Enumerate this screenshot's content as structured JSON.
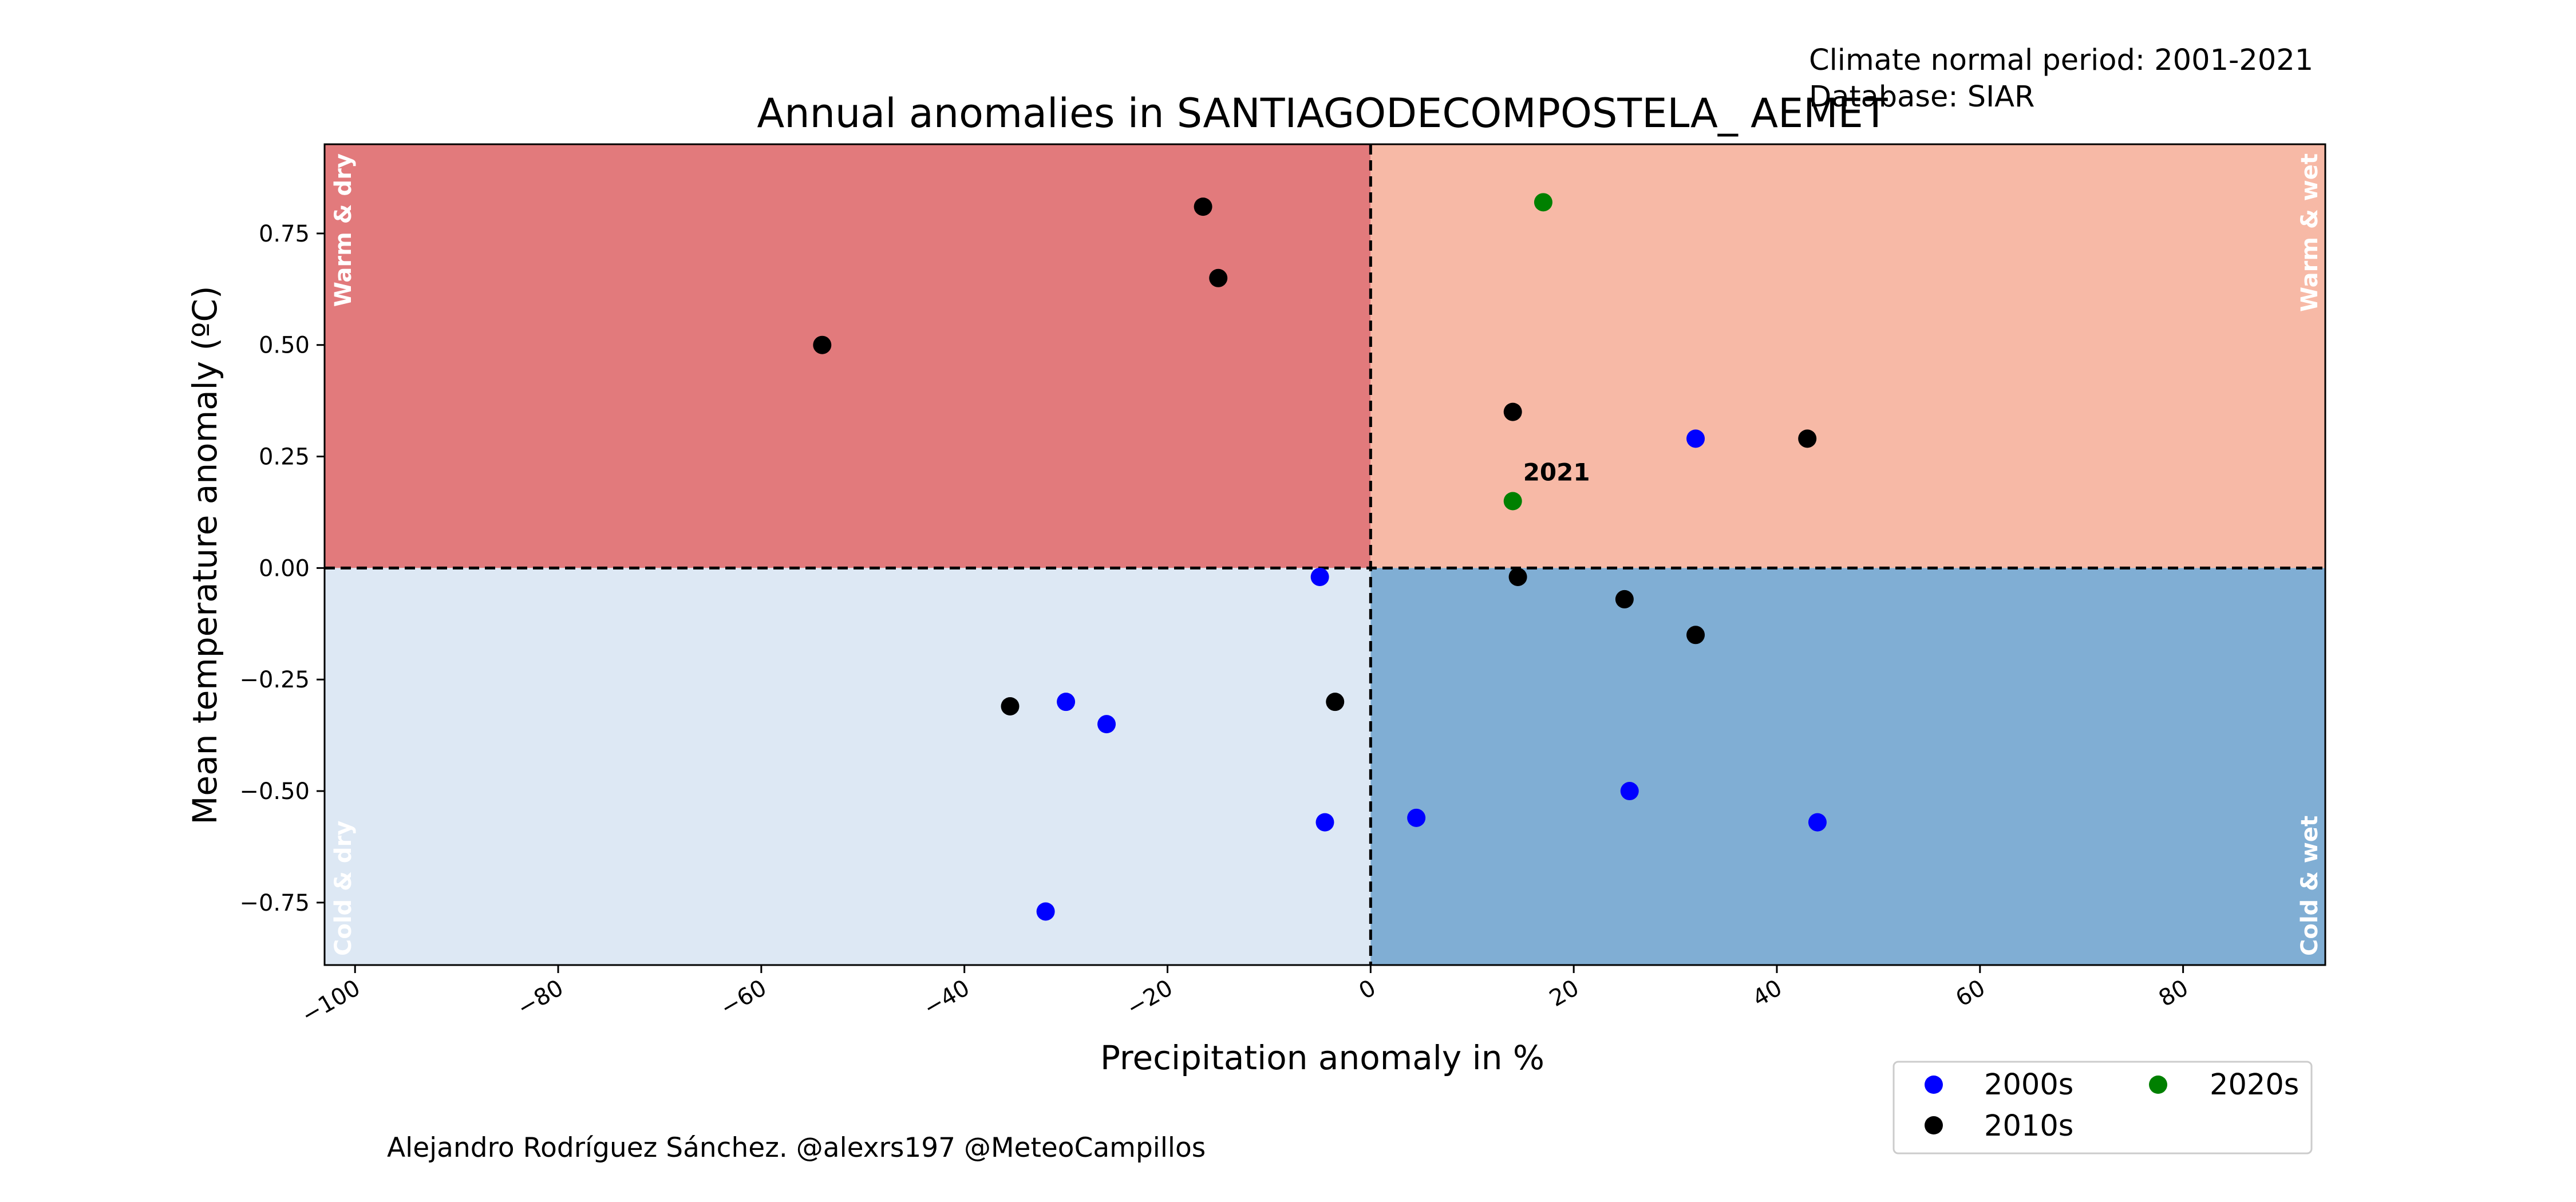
{
  "chart_data": {
    "type": "scatter",
    "title": "Annual anomalies in SANTIAGODECOMPOSTELA_ AEMET",
    "info_lines": [
      "Climate normal period: 2001-2021",
      "Database: SIAR"
    ],
    "xlabel": "Precipitation anomaly in %",
    "ylabel": "Mean temperature anomaly (ºC)",
    "xlim": [
      -103,
      94
    ],
    "ylim": [
      -0.89,
      0.95
    ],
    "x_ticks": [
      -100,
      -80,
      -60,
      -40,
      -20,
      0,
      20,
      40,
      60,
      80
    ],
    "x_tick_labels": [
      "−100",
      "−80",
      "−60",
      "−40",
      "−20",
      "0",
      "20",
      "40",
      "60",
      "80"
    ],
    "y_ticks": [
      0.75,
      0.5,
      0.25,
      0.0,
      -0.25,
      -0.5,
      -0.75
    ],
    "y_tick_labels": [
      "0.75",
      "0.50",
      "0.25",
      "0.00",
      "−0.25",
      "−0.50",
      "−0.75"
    ],
    "grid": false,
    "reference_lines": {
      "x": 0,
      "y": 0,
      "style": "dashed"
    },
    "quadrants": [
      {
        "label": "Warm & dry",
        "color": "#e27a7c"
      },
      {
        "label": "Warm & wet",
        "color": "#f7b9a6"
      },
      {
        "label": "Cold & dry",
        "color": "#dde8f4"
      },
      {
        "label": "Cold & wet",
        "color": "#80aed4"
      }
    ],
    "quadrant_label_color": "#ffffff",
    "legend_position": "bottom-right, below plot",
    "series": [
      {
        "name": "2000s",
        "color": "#0000ff",
        "points": [
          {
            "x": 32,
            "y": 0.29
          },
          {
            "x": -5,
            "y": -0.02
          },
          {
            "x": -30,
            "y": -0.3
          },
          {
            "x": -26,
            "y": -0.35
          },
          {
            "x": -4.5,
            "y": -0.57
          },
          {
            "x": 4.5,
            "y": -0.56
          },
          {
            "x": 25.5,
            "y": -0.5
          },
          {
            "x": 44,
            "y": -0.57
          },
          {
            "x": -32,
            "y": -0.77
          }
        ]
      },
      {
        "name": "2010s",
        "color": "#000000",
        "points": [
          {
            "x": -16.5,
            "y": 0.81
          },
          {
            "x": -15,
            "y": 0.65
          },
          {
            "x": -54,
            "y": 0.5
          },
          {
            "x": 14,
            "y": 0.35
          },
          {
            "x": 43,
            "y": 0.29
          },
          {
            "x": 14.5,
            "y": -0.02
          },
          {
            "x": 25,
            "y": -0.07
          },
          {
            "x": 32,
            "y": -0.15
          },
          {
            "x": -35.5,
            "y": -0.31
          },
          {
            "x": -3.5,
            "y": -0.3
          }
        ]
      },
      {
        "name": "2020s",
        "color": "#008000",
        "points": [
          {
            "x": 17,
            "y": 0.82
          },
          {
            "x": 14,
            "y": 0.15
          }
        ]
      }
    ],
    "annotations": [
      {
        "text": "2021",
        "x": 14,
        "y": 0.15
      }
    ],
    "credit": "Alejandro Rodríguez Sánchez. @alexrs197 @MeteoCampillos"
  }
}
